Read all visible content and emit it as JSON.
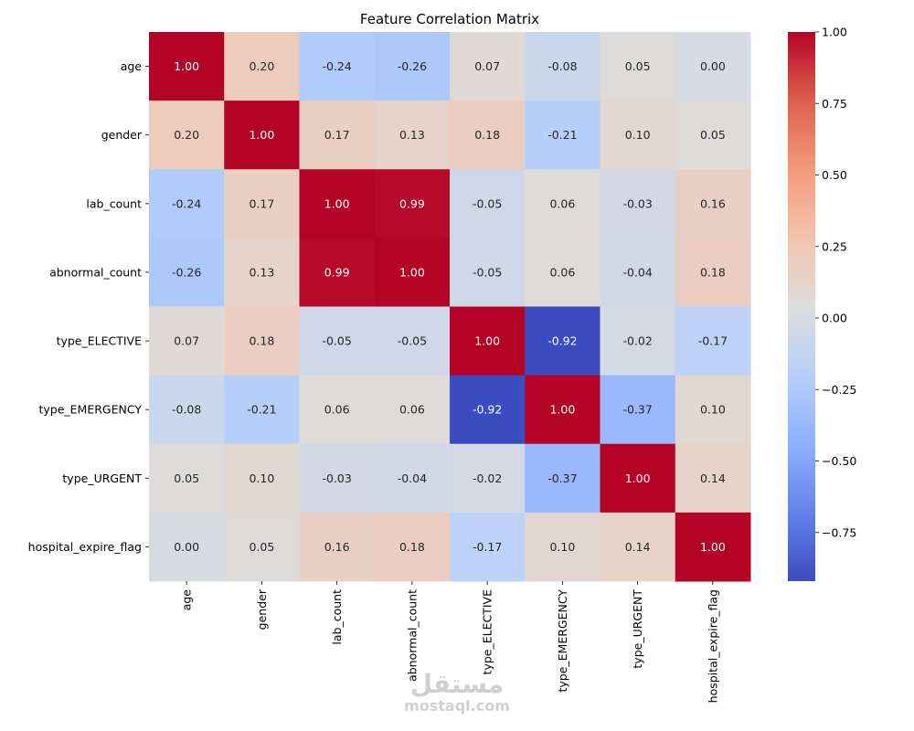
{
  "chart_data": {
    "type": "heatmap",
    "title": "Feature Correlation Matrix",
    "xlabel": "",
    "ylabel": "",
    "labels": [
      "age",
      "gender",
      "lab_count",
      "abnormal_count",
      "type_ELECTIVE",
      "type_EMERGENCY",
      "type_URGENT",
      "hospital_expire_flag"
    ],
    "values": [
      [
        1.0,
        0.2,
        -0.24,
        -0.26,
        0.07,
        -0.08,
        0.05,
        -0.0
      ],
      [
        0.2,
        1.0,
        0.17,
        0.13,
        0.18,
        -0.21,
        0.1,
        0.05
      ],
      [
        -0.24,
        0.17,
        1.0,
        0.99,
        -0.05,
        0.06,
        -0.03,
        0.16
      ],
      [
        -0.26,
        0.13,
        0.99,
        1.0,
        -0.05,
        0.06,
        -0.04,
        0.18
      ],
      [
        0.07,
        0.18,
        -0.05,
        -0.05,
        1.0,
        -0.92,
        -0.02,
        -0.17
      ],
      [
        -0.08,
        -0.21,
        0.06,
        0.06,
        -0.92,
        1.0,
        -0.37,
        0.1
      ],
      [
        0.05,
        0.1,
        -0.03,
        -0.04,
        -0.02,
        -0.37,
        1.0,
        0.14
      ],
      [
        -0.0,
        0.05,
        0.16,
        0.18,
        -0.17,
        0.1,
        0.14,
        1.0
      ]
    ],
    "colormap": "coolwarm",
    "color_range": [
      -0.92,
      1.0
    ],
    "colorbar": {
      "ticks": [
        1.0,
        0.75,
        0.5,
        0.25,
        0.0,
        -0.25,
        -0.5,
        -0.75
      ],
      "tick_labels": [
        "1.00",
        "0.75",
        "0.50",
        "0.25",
        "0.00",
        "−0.25",
        "−0.50",
        "−0.75"
      ],
      "placement": "right"
    },
    "annotate": true,
    "number_format": "0.00"
  },
  "watermark": {
    "arabic": "مستقل",
    "text": "mostaql.com"
  }
}
